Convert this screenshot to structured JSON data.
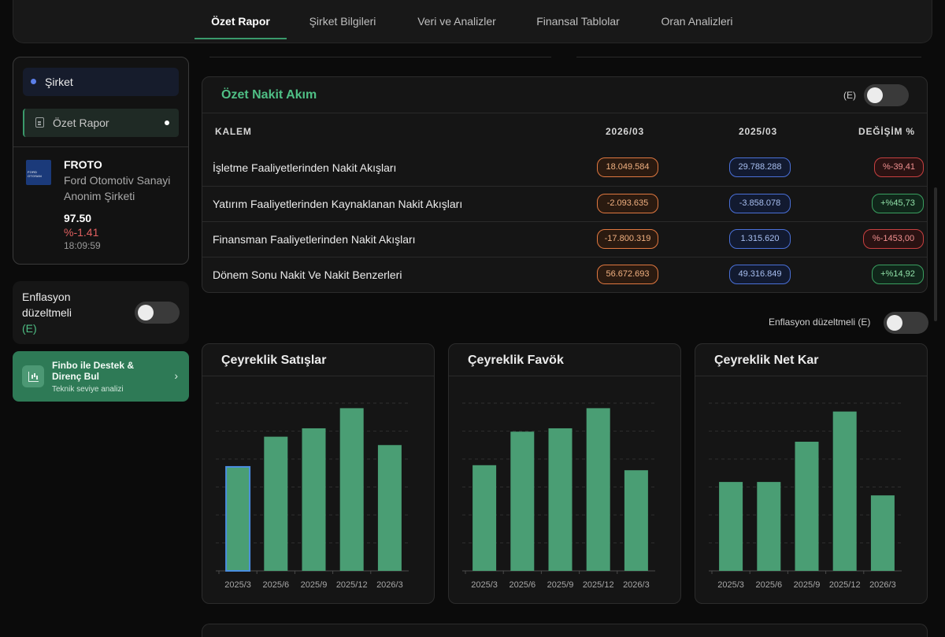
{
  "nav": {
    "tabs": [
      {
        "label": "Özet Rapor",
        "active": true
      },
      {
        "label": "Şirket Bilgileri",
        "active": false
      },
      {
        "label": "Veri ve Analizler",
        "active": false
      },
      {
        "label": "Finansal Tablolar",
        "active": false
      },
      {
        "label": "Oran Analizleri",
        "active": false
      }
    ]
  },
  "sidebar": {
    "company_label": "Şirket",
    "report_label": "Özet Rapor",
    "logo_text": "FORD OTOSAN",
    "ticker": "FROTO",
    "company_name": "Ford Otomotiv Sanayi Anonim Şirketi",
    "price": "97.50",
    "change": "%-1.41",
    "time": "18:09:59",
    "inflation_label": "Enflasyon düzeltmeli",
    "inflation_suffix": "(E)",
    "finbo_title": "Finbo ile Destek & Direnç Bul",
    "finbo_subtitle": "Teknik seviye analizi"
  },
  "cash_flow": {
    "title": "Özet Nakit Akım",
    "toggle_label": "(E)",
    "headers": [
      "KALEM",
      "2026/03",
      "2025/03",
      "DEĞİŞİM %"
    ],
    "rows": [
      {
        "label": "İşletme Faaliyetlerinden Nakit Akışları",
        "v2026": "18.049.584",
        "v2025": "29.788.288",
        "change": "%-39,41",
        "positive": false
      },
      {
        "label": "Yatırım Faaliyetlerinden Kaynaklanan Nakit Akışları",
        "v2026": "-2.093.635",
        "v2025": "-3.858.078",
        "change": "+%45,73",
        "positive": true
      },
      {
        "label": "Finansman Faaliyetlerinden Nakit Akışları",
        "v2026": "-17.800.319",
        "v2025": "1.315.620",
        "change": "%-1453,00",
        "positive": false
      },
      {
        "label": "Dönem Sonu Nakit Ve Nakit Benzerleri",
        "v2026": "56.672.693",
        "v2025": "49.316.849",
        "change": "+%14,92",
        "positive": true
      }
    ]
  },
  "inflation_toggle_label": "Enflasyon düzeltmeli (E)",
  "colors": {
    "accent": "#3a9a6b",
    "bar": "#4a9e74",
    "highlight": "#4a8ee0"
  },
  "chart_data": [
    {
      "type": "bar",
      "title": "Çeyreklik Satışlar",
      "categories": [
        "2025/3",
        "2025/6",
        "2025/9",
        "2025/12",
        "2026/3"
      ],
      "values": [
        62,
        80,
        85,
        97,
        75
      ],
      "ylim": [
        0,
        100
      ],
      "grid": true,
      "highlight_index": 0
    },
    {
      "type": "bar",
      "title": "Çeyreklik Favök",
      "categories": [
        "2025/3",
        "2025/6",
        "2025/9",
        "2025/12",
        "2026/3"
      ],
      "values": [
        63,
        83,
        85,
        97,
        60
      ],
      "ylim": [
        0,
        100
      ],
      "grid": true
    },
    {
      "type": "bar",
      "title": "Çeyreklik Net Kar",
      "categories": [
        "2025/3",
        "2025/6",
        "2025/9",
        "2025/12",
        "2026/3"
      ],
      "values": [
        53,
        53,
        77,
        95,
        45
      ],
      "ylim": [
        0,
        100
      ],
      "grid": true
    }
  ]
}
